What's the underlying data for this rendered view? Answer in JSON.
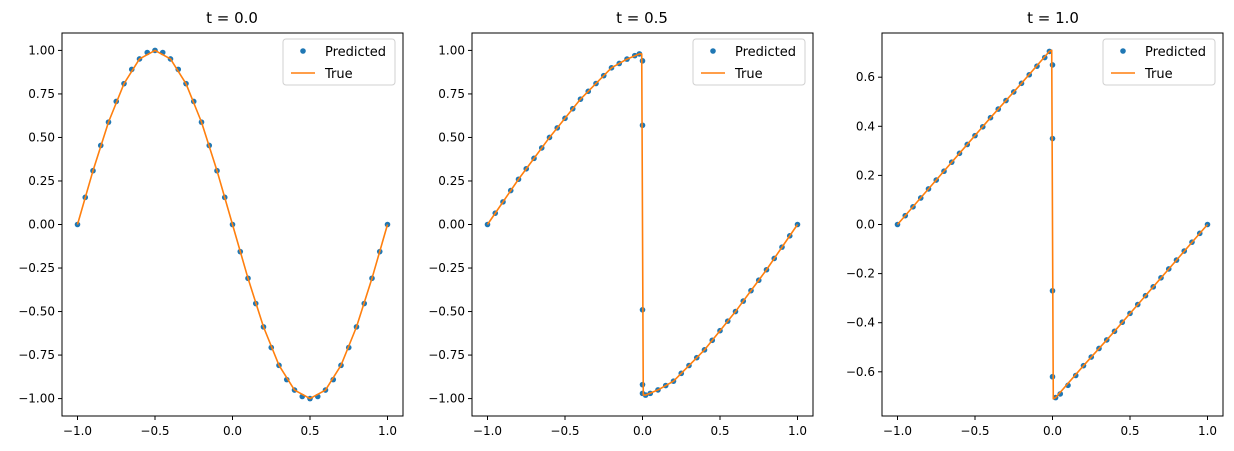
{
  "colors": {
    "predicted": "#1f77b4",
    "true": "#ff7f0e",
    "axis": "#000000"
  },
  "chart_data": [
    {
      "type": "scatter",
      "title": "t = 0.0",
      "xlim": [
        -1.1,
        1.1
      ],
      "ylim": [
        -1.1,
        1.1
      ],
      "x_ticks": [
        -1.0,
        -0.5,
        0.0,
        0.5,
        1.0
      ],
      "x_tick_labels": [
        "−1.0",
        "−0.5",
        "0.0",
        "0.5",
        "1.0"
      ],
      "y_ticks": [
        1.0,
        0.75,
        0.5,
        0.25,
        0.0,
        -0.25,
        -0.5,
        -0.75,
        -1.0
      ],
      "y_tick_labels": [
        "1.00",
        "0.75",
        "0.50",
        "0.25",
        "0.00",
        "−0.25",
        "−0.50",
        "−0.75",
        "−1.00"
      ],
      "legend": [
        "Predicted",
        "True"
      ],
      "legend_position": "top-right",
      "grid": false,
      "series": [
        {
          "name": "True",
          "kind": "line",
          "x": [
            -1.0,
            -0.9,
            -0.8,
            -0.7,
            -0.6,
            -0.5,
            -0.4,
            -0.3,
            -0.2,
            -0.1,
            0.0,
            0.1,
            0.2,
            0.3,
            0.4,
            0.5,
            0.6,
            0.7,
            0.8,
            0.9,
            1.0
          ],
          "values": [
            0.0,
            0.309,
            0.588,
            0.809,
            0.951,
            1.0,
            0.951,
            0.809,
            0.588,
            0.309,
            0.0,
            -0.309,
            -0.588,
            -0.809,
            -0.951,
            -1.0,
            -0.951,
            -0.809,
            -0.588,
            -0.309,
            0.0
          ]
        },
        {
          "name": "Predicted",
          "kind": "scatter",
          "x": [
            -1.0,
            -0.95,
            -0.9,
            -0.85,
            -0.8,
            -0.75,
            -0.7,
            -0.65,
            -0.6,
            -0.55,
            -0.5,
            -0.45,
            -0.4,
            -0.35,
            -0.3,
            -0.25,
            -0.2,
            -0.15,
            -0.1,
            -0.05,
            0.0,
            0.05,
            0.1,
            0.15,
            0.2,
            0.25,
            0.3,
            0.35,
            0.4,
            0.45,
            0.5,
            0.55,
            0.6,
            0.65,
            0.7,
            0.75,
            0.8,
            0.85,
            0.9,
            0.95,
            1.0
          ],
          "values": [
            0.0,
            0.156,
            0.309,
            0.454,
            0.588,
            0.707,
            0.809,
            0.891,
            0.951,
            0.988,
            1.0,
            0.988,
            0.951,
            0.891,
            0.809,
            0.707,
            0.588,
            0.454,
            0.309,
            0.156,
            0.0,
            -0.156,
            -0.309,
            -0.454,
            -0.588,
            -0.707,
            -0.809,
            -0.891,
            -0.951,
            -0.988,
            -1.0,
            -0.988,
            -0.951,
            -0.891,
            -0.809,
            -0.707,
            -0.588,
            -0.454,
            -0.309,
            -0.156,
            0.0
          ]
        }
      ]
    },
    {
      "type": "scatter",
      "title": "t = 0.5",
      "xlim": [
        -1.1,
        1.1
      ],
      "ylim": [
        -1.1,
        1.1
      ],
      "x_ticks": [
        -1.0,
        -0.5,
        0.0,
        0.5,
        1.0
      ],
      "x_tick_labels": [
        "−1.0",
        "−0.5",
        "0.0",
        "0.5",
        "1.0"
      ],
      "y_ticks": [
        1.0,
        0.75,
        0.5,
        0.25,
        0.0,
        -0.25,
        -0.5,
        -0.75,
        -1.0
      ],
      "y_tick_labels": [
        "1.00",
        "0.75",
        "0.50",
        "0.25",
        "0.00",
        "−0.25",
        "−0.50",
        "−0.75",
        "−1.00"
      ],
      "legend": [
        "Predicted",
        "True"
      ],
      "legend_position": "top-right",
      "grid": false,
      "series": [
        {
          "name": "True",
          "kind": "line",
          "x": [
            -1.0,
            -0.9,
            -0.8,
            -0.7,
            -0.6,
            -0.5,
            -0.4,
            -0.3,
            -0.2,
            -0.1,
            -0.02,
            -0.005,
            0.005,
            0.02,
            0.1,
            0.2,
            0.3,
            0.4,
            0.5,
            0.6,
            0.7,
            0.8,
            0.9,
            1.0
          ],
          "values": [
            0.0,
            0.13,
            0.26,
            0.38,
            0.5,
            0.61,
            0.72,
            0.81,
            0.9,
            0.95,
            0.98,
            0.98,
            -0.98,
            -0.98,
            -0.95,
            -0.9,
            -0.81,
            -0.72,
            -0.61,
            -0.5,
            -0.38,
            -0.26,
            -0.13,
            0.0
          ]
        },
        {
          "name": "Predicted",
          "kind": "scatter",
          "x": [
            -1.0,
            -0.95,
            -0.9,
            -0.85,
            -0.8,
            -0.75,
            -0.7,
            -0.65,
            -0.6,
            -0.55,
            -0.5,
            -0.45,
            -0.4,
            -0.35,
            -0.3,
            -0.25,
            -0.2,
            -0.15,
            -0.1,
            -0.05,
            -0.02,
            0.0,
            0.0,
            0.0,
            0.0,
            0.0,
            0.02,
            0.05,
            0.1,
            0.15,
            0.2,
            0.25,
            0.3,
            0.35,
            0.4,
            0.45,
            0.5,
            0.55,
            0.6,
            0.65,
            0.7,
            0.75,
            0.8,
            0.85,
            0.9,
            0.95,
            1.0
          ],
          "values": [
            0.0,
            0.065,
            0.13,
            0.195,
            0.26,
            0.32,
            0.38,
            0.44,
            0.5,
            0.555,
            0.61,
            0.665,
            0.72,
            0.765,
            0.81,
            0.855,
            0.9,
            0.925,
            0.95,
            0.97,
            0.98,
            0.94,
            0.57,
            -0.49,
            -0.92,
            -0.97,
            -0.98,
            -0.97,
            -0.95,
            -0.925,
            -0.9,
            -0.855,
            -0.81,
            -0.765,
            -0.72,
            -0.665,
            -0.61,
            -0.555,
            -0.5,
            -0.44,
            -0.38,
            -0.32,
            -0.26,
            -0.195,
            -0.13,
            -0.065,
            0.0
          ]
        }
      ]
    },
    {
      "type": "scatter",
      "title": "t = 1.0",
      "xlim": [
        -1.1,
        1.1
      ],
      "ylim": [
        -0.78,
        0.78
      ],
      "x_ticks": [
        -1.0,
        -0.5,
        0.0,
        0.5,
        1.0
      ],
      "x_tick_labels": [
        "−1.0",
        "−0.5",
        "0.0",
        "0.5",
        "1.0"
      ],
      "y_ticks": [
        0.6,
        0.4,
        0.2,
        0.0,
        -0.2,
        -0.4,
        -0.6
      ],
      "y_tick_labels": [
        "0.6",
        "0.4",
        "0.2",
        "0.0",
        "−0.2",
        "−0.4",
        "−0.6"
      ],
      "legend": [
        "Predicted",
        "True"
      ],
      "legend_position": "top-right",
      "grid": false,
      "series": [
        {
          "name": "True",
          "kind": "line",
          "x": [
            -1.0,
            -0.8,
            -0.6,
            -0.4,
            -0.2,
            -0.02,
            -0.005,
            0.005,
            0.02,
            0.2,
            0.4,
            0.6,
            0.8,
            1.0
          ],
          "values": [
            0.0,
            0.145,
            0.29,
            0.435,
            0.575,
            0.705,
            0.71,
            -0.71,
            -0.705,
            -0.575,
            -0.435,
            -0.29,
            -0.145,
            0.0
          ]
        },
        {
          "name": "Predicted",
          "kind": "scatter",
          "x": [
            -1.0,
            -0.95,
            -0.9,
            -0.85,
            -0.8,
            -0.75,
            -0.7,
            -0.65,
            -0.6,
            -0.55,
            -0.5,
            -0.45,
            -0.4,
            -0.35,
            -0.3,
            -0.25,
            -0.2,
            -0.15,
            -0.1,
            -0.05,
            -0.02,
            0.0,
            0.0,
            0.0,
            0.0,
            0.02,
            0.05,
            0.1,
            0.15,
            0.2,
            0.25,
            0.3,
            0.35,
            0.4,
            0.45,
            0.5,
            0.55,
            0.6,
            0.65,
            0.7,
            0.75,
            0.8,
            0.85,
            0.9,
            0.95,
            1.0
          ],
          "values": [
            0.0,
            0.036,
            0.072,
            0.108,
            0.145,
            0.181,
            0.217,
            0.254,
            0.29,
            0.326,
            0.362,
            0.398,
            0.435,
            0.47,
            0.505,
            0.54,
            0.575,
            0.61,
            0.645,
            0.68,
            0.705,
            0.65,
            0.35,
            -0.27,
            -0.62,
            -0.705,
            -0.69,
            -0.655,
            -0.615,
            -0.575,
            -0.54,
            -0.505,
            -0.47,
            -0.435,
            -0.398,
            -0.362,
            -0.326,
            -0.29,
            -0.254,
            -0.217,
            -0.181,
            -0.145,
            -0.108,
            -0.072,
            -0.036,
            0.0
          ]
        }
      ]
    }
  ]
}
